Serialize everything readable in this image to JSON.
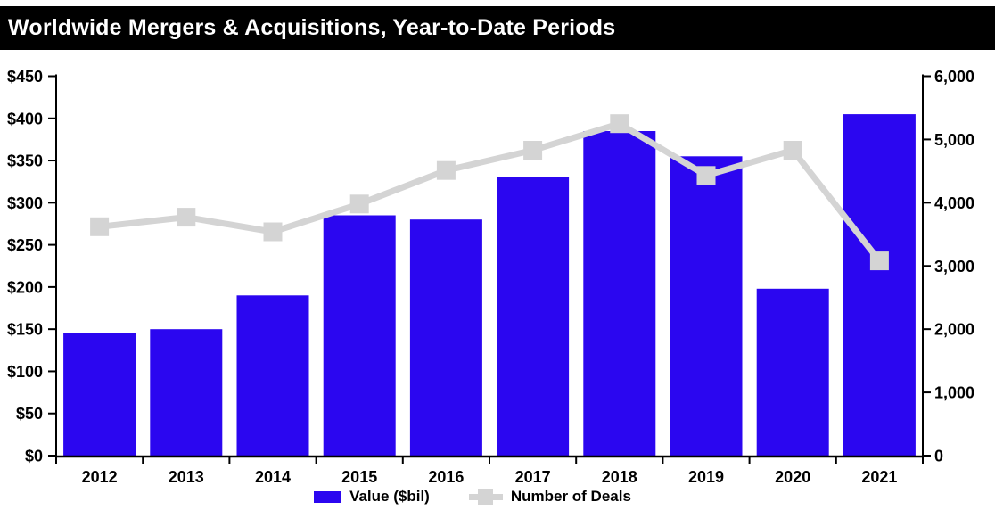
{
  "title": "Worldwide Mergers & Acquisitions, Year-to-Date Periods",
  "legend": {
    "value_label": "Value ($bil)",
    "deals_label": "Number of Deals"
  },
  "colors": {
    "bar": "#2b06f0",
    "line": "#d4d4d4",
    "axis": "#000000",
    "title_bg": "#000000",
    "title_fg": "#ffffff"
  },
  "chart_data": {
    "type": "bar",
    "subtype": "bar-line-combo",
    "title": "Worldwide Mergers & Acquisitions, Year-to-Date Periods",
    "categories": [
      "2012",
      "2013",
      "2014",
      "2015",
      "2016",
      "2017",
      "2018",
      "2019",
      "2020",
      "2021"
    ],
    "series": [
      {
        "name": "Value ($bil)",
        "type": "bar",
        "axis": "left",
        "values": [
          145,
          150,
          190,
          285,
          280,
          330,
          385,
          355,
          198,
          405
        ]
      },
      {
        "name": "Number of Deals",
        "type": "line",
        "axis": "right",
        "values": [
          3620,
          3770,
          3540,
          3980,
          4510,
          4830,
          5250,
          4430,
          4830,
          3080
        ]
      }
    ],
    "left_axis": {
      "min": 0,
      "max": 450,
      "tick_step": 50,
      "tick_labels_top_to_bottom": [
        "$450",
        "$400",
        "$350",
        "$300",
        "$250",
        "$200",
        "$150",
        "$100",
        "$50",
        "$0"
      ]
    },
    "right_axis": {
      "min": 0,
      "max": 6000,
      "tick_step": 1000,
      "tick_labels_top_to_bottom": [
        "6,000",
        "5,000",
        "4,000",
        "3,000",
        "2,000",
        "1,000",
        "0"
      ]
    },
    "gridlines": false,
    "legend_position": "bottom"
  }
}
